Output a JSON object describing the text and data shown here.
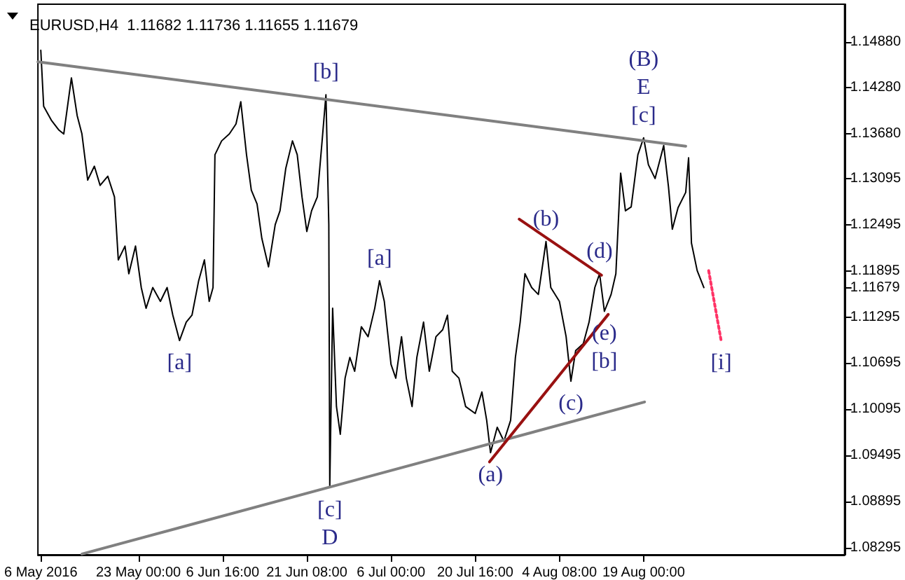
{
  "chart_data": {
    "type": "line",
    "title": "EURUSD,H4  1.11682 1.11736 1.11655 1.11679",
    "marker": "none",
    "x": [
      "2016-05-06T00:00",
      "2016-05-06T12:00",
      "2016-05-07T20:00",
      "2016-05-09T04:00",
      "2016-05-10T00:00",
      "2016-05-11T08:00",
      "2016-05-12T08:00",
      "2016-05-13T04:00",
      "2016-05-14T04:00",
      "2016-05-15T08:00",
      "2016-05-16T08:00",
      "2016-05-17T16:00",
      "2016-05-18T20:00",
      "2016-05-19T12:00",
      "2016-05-20T16:00",
      "2016-05-21T08:00",
      "2016-05-22T12:00",
      "2016-05-23T12:00",
      "2016-05-24T08:00",
      "2016-05-25T12:00",
      "2016-05-26T20:00",
      "2016-05-28T00:00",
      "2016-05-29T00:00",
      "2016-05-30T04:00",
      "2016-05-31T08:00",
      "2016-06-01T08:00",
      "2016-06-02T12:00",
      "2016-06-03T12:00",
      "2016-06-04T08:00",
      "2016-06-05T00:00",
      "2016-06-05T08:00",
      "2016-06-06T12:00",
      "2016-06-07T20:00",
      "2016-06-09T00:00",
      "2016-06-09T20:00",
      "2016-06-10T20:00",
      "2016-06-11T16:00",
      "2016-06-12T16:00",
      "2016-06-13T12:00",
      "2016-06-14T16:00",
      "2016-06-15T20:00",
      "2016-06-16T16:00",
      "2016-06-17T16:00",
      "2016-06-18T20:00",
      "2016-06-19T16:00",
      "2016-06-20T12:00",
      "2016-06-21T08:00",
      "2016-06-22T04:00",
      "2016-06-23T04:00",
      "2016-06-24T00:00",
      "2016-06-24T16:00",
      "2016-06-25T04:00",
      "2016-06-25T08:00",
      "2016-06-25T20:00",
      "2016-06-26T12:00",
      "2016-06-27T04:00",
      "2016-06-28T00:00",
      "2016-06-28T20:00",
      "2016-06-29T16:00",
      "2016-06-30T20:00",
      "2016-07-02T00:00",
      "2016-07-03T04:00",
      "2016-07-04T00:00",
      "2016-07-04T20:00",
      "2016-07-06T00:00",
      "2016-07-06T20:00",
      "2016-07-07T20:00",
      "2016-07-08T16:00",
      "2016-07-09T16:00",
      "2016-07-10T12:00",
      "2016-07-11T16:00",
      "2016-07-12T16:00",
      "2016-07-13T20:00",
      "2016-07-15T00:00",
      "2016-07-15T20:00",
      "2016-07-16T16:00",
      "2016-07-17T20:00",
      "2016-07-19T00:00",
      "2016-07-20T16:00",
      "2016-07-21T20:00",
      "2016-07-22T16:00",
      "2016-07-23T08:00",
      "2016-07-24T12:00",
      "2016-07-25T16:00",
      "2016-07-26T20:00",
      "2016-07-27T16:00",
      "2016-07-28T12:00",
      "2016-07-29T08:00",
      "2016-07-30T12:00",
      "2016-07-31T16:00",
      "2016-08-02T00:00",
      "2016-08-02T20:00",
      "2016-08-04T08:00",
      "2016-08-05T12:00",
      "2016-08-06T08:00",
      "2016-08-07T04:00",
      "2016-08-08T12:00",
      "2016-08-09T12:00",
      "2016-08-10T12:00",
      "2016-08-11T08:00",
      "2016-08-12T04:00",
      "2016-08-13T08:00",
      "2016-08-14T04:00",
      "2016-08-15T00:00",
      "2016-08-15T20:00",
      "2016-08-16T20:00",
      "2016-08-18T00:00",
      "2016-08-19T00:00",
      "2016-08-19T20:00",
      "2016-08-21T00:00",
      "2016-08-22T12:00",
      "2016-08-23T08:00",
      "2016-08-24T00:00",
      "2016-08-25T00:00",
      "2016-08-26T08:00",
      "2016-08-26T20:00",
      "2016-08-27T08:00",
      "2016-08-28T08:00",
      "2016-08-29T12:00"
    ],
    "series": [
      {
        "color": "#000000",
        "values": [
          1.1477,
          1.1404,
          1.1386,
          1.1373,
          1.1368,
          1.1441,
          1.1392,
          1.1368,
          1.1308,
          1.1326,
          1.1301,
          1.1313,
          1.1286,
          1.1204,
          1.1222,
          1.1186,
          1.1222,
          1.1168,
          1.1141,
          1.1168,
          1.115,
          1.1168,
          1.1132,
          1.1099,
          1.1123,
          1.1132,
          1.1177,
          1.1204,
          1.115,
          1.1168,
          1.1341,
          1.1359,
          1.1368,
          1.1381,
          1.141,
          1.1341,
          1.1295,
          1.1277,
          1.1232,
          1.1195,
          1.125,
          1.1268,
          1.1323,
          1.1359,
          1.1341,
          1.1286,
          1.1241,
          1.1268,
          1.1286,
          1.1359,
          1.1419,
          1.125,
          1.0908,
          1.1141,
          1.1013,
          1.0977,
          1.105,
          1.1077,
          1.1059,
          1.1117,
          1.1104,
          1.1141,
          1.1177,
          1.115,
          1.1068,
          1.105,
          1.1104,
          1.105,
          1.1013,
          1.1077,
          1.1123,
          1.1059,
          1.1104,
          1.1113,
          1.1132,
          1.1059,
          1.105,
          1.1013,
          1.1004,
          1.1032,
          1.0995,
          1.0953,
          1.0986,
          1.0968,
          1.0995,
          1.1077,
          1.1123,
          1.1186,
          1.1168,
          1.1159,
          1.1228,
          1.1168,
          1.115,
          1.1104,
          1.1046,
          1.1086,
          1.1095,
          1.1123,
          1.1168,
          1.1186,
          1.1137,
          1.1159,
          1.1186,
          1.1317,
          1.1268,
          1.1273,
          1.1341,
          1.1363,
          1.1328,
          1.131,
          1.1353,
          1.1299,
          1.1244,
          1.1272,
          1.1292,
          1.1337,
          1.1226,
          1.119,
          1.1168
        ]
      },
      {
        "type": "line",
        "color": "#808080",
        "x": [
          "2016-05-05T12:00",
          "2016-08-26T08:00"
        ],
        "values": [
          1.1462,
          1.1352
        ]
      },
      {
        "type": "line",
        "color": "#808080",
        "x": [
          "2016-05-13T04:00",
          "2016-08-19T04:00"
        ],
        "values": [
          1.0821,
          1.1019
        ]
      },
      {
        "type": "line",
        "color": "#991111",
        "x": [
          "2016-07-28T08:00",
          "2016-08-11T16:00"
        ],
        "values": [
          1.1257,
          1.1184
        ]
      },
      {
        "type": "line",
        "color": "#991111",
        "x": [
          "2016-07-23T04:00",
          "2016-08-12T20:00"
        ],
        "values": [
          1.0941,
          1.1133
        ]
      },
      {
        "type": "line",
        "color": "#ff3366",
        "line_style": "dotted",
        "x": [
          "2016-08-30T08:00",
          "2016-09-01T12:00"
        ],
        "values": [
          1.119,
          1.1099
        ]
      }
    ],
    "xlim": [
      "2016-05-05T12:00",
      "2016-09-23T00:00"
    ],
    "ylim": [
      1.082,
      1.1537
    ],
    "xticks": [
      {
        "value": "2016-05-06",
        "label": "6 May 2016"
      },
      {
        "value": "2016-05-23T00:00",
        "label": "23 May 00:00"
      },
      {
        "value": "2016-06-06T16:00",
        "label": "6 Jun 16:00"
      },
      {
        "value": "2016-06-21T08:00",
        "label": "21 Jun 08:00"
      },
      {
        "value": "2016-07-06T00:00",
        "label": "6 Jul 00:00"
      },
      {
        "value": "2016-07-20T16:00",
        "label": "20 Jul 16:00"
      },
      {
        "value": "2016-08-04T08:00",
        "label": "4 Aug 08:00"
      },
      {
        "value": "2016-08-19T00:00",
        "label": "19 Aug 00:00"
      }
    ],
    "yticks": [
      {
        "value": 1.1488,
        "label": "1.14880"
      },
      {
        "value": 1.1428,
        "label": "1.14280"
      },
      {
        "value": 1.1368,
        "label": "1.13680"
      },
      {
        "value": 1.13095,
        "label": "1.13095"
      },
      {
        "value": 1.12495,
        "label": "1.12495"
      },
      {
        "value": 1.11895,
        "label": "1.11895"
      },
      {
        "value": 1.11679,
        "label": "1.11679"
      },
      {
        "value": 1.11295,
        "label": "1.11295"
      },
      {
        "value": 1.10695,
        "label": "1.10695"
      },
      {
        "value": 1.10095,
        "label": "1.10095"
      },
      {
        "value": 1.09495,
        "label": "1.09495"
      },
      {
        "value": 1.08895,
        "label": "1.08895"
      },
      {
        "value": 1.08295,
        "label": "1.08295"
      }
    ],
    "annotations": [
      {
        "text": "[a]",
        "x": "2016-05-30T04:00",
        "y": 1.1099
      },
      {
        "text": "[b]",
        "x": "2016-06-24T16:00",
        "y": 1.1419
      },
      {
        "text": "[c]",
        "x": "2016-06-25T08:00",
        "y": 1.0908
      },
      {
        "text": "D",
        "x": "2016-06-25T08:00",
        "y": 1.0908
      },
      {
        "text": "[a]",
        "x": "2016-07-04T00:00",
        "y": 1.1177
      },
      {
        "text": "(a)",
        "x": "2016-07-23T08:00",
        "y": 1.0953
      },
      {
        "text": "(b)",
        "x": "2016-08-02T00:00",
        "y": 1.1228
      },
      {
        "text": "(c)",
        "x": "2016-08-06T08:00",
        "y": 1.1046
      },
      {
        "text": "(d)",
        "x": "2016-08-11T08:00",
        "y": 1.1186
      },
      {
        "text": "(e)",
        "x": "2016-08-12T04:00",
        "y": 1.1137
      },
      {
        "text": "[b]",
        "x": "2016-08-12T04:00",
        "y": 1.1137
      },
      {
        "text": "(B)",
        "x": "2016-08-19T00:00",
        "y": 1.1363
      },
      {
        "text": "E",
        "x": "2016-08-19T00:00",
        "y": 1.1363
      },
      {
        "text": "[c]",
        "x": "2016-08-19T00:00",
        "y": 1.1363
      },
      {
        "text": "[i]",
        "x": "2016-09-01T12:00",
        "y": 1.1099
      }
    ]
  }
}
